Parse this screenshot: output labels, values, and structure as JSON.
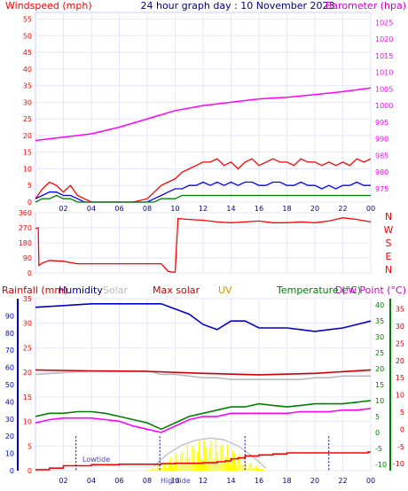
{
  "header": {
    "windspeed_title": "Windspeed (mph)",
    "center_title": "24 hour graph day : 10 November 2023",
    "barometer_title": "Barometer (hpa)"
  },
  "legend": {
    "rainfall": "Rainfall (mm)",
    "humidity": "Humidity",
    "solar": "Solar",
    "max_solar": "Max solar",
    "uv": "UV",
    "temperature": "Temperature (°C)",
    "dew_point": "Dew Point (°C)"
  },
  "annotations": {
    "lowtide": "Lowtide",
    "hightide": "Hightide"
  },
  "colors": {
    "windspeed": "#ff0000",
    "wind_avg": "#0000ff",
    "wind_low": "#008000",
    "barometer": "#ff00ff",
    "direction": "#ff0000",
    "rainfall": "#ff0000",
    "humidity": "#0000cc",
    "solar": "#bbbbbb",
    "max_solar": "#cc0000",
    "uv": "#cc9900",
    "temperature": "#008000",
    "dew_point": "#ff00ff",
    "solar_fill": "#ffff00"
  },
  "chart_data": [
    {
      "type": "line",
      "name": "wind-barometer",
      "x_ticks": [
        "02",
        "04",
        "06",
        "08",
        "10",
        "12",
        "14",
        "16",
        "18",
        "20",
        "22",
        "00"
      ],
      "left_axis": {
        "ticks": [
          0,
          5,
          10,
          15,
          20,
          25,
          30,
          35,
          40,
          45,
          50,
          55
        ],
        "range": [
          0,
          57
        ]
      },
      "right_axis": {
        "ticks": [
          975,
          980,
          985,
          990,
          995,
          1000,
          1005,
          1010,
          1015,
          1020,
          1025
        ],
        "range": [
          971,
          1028
        ]
      },
      "series": [
        {
          "name": "Windspeed (mph)",
          "axis": "left",
          "role": "gust",
          "x": [
            0,
            0.5,
            1,
            1.5,
            2,
            2.5,
            3,
            3.5,
            4,
            5,
            6,
            7,
            8,
            8.5,
            9,
            9.5,
            10,
            10.5,
            11,
            11.5,
            12,
            12.5,
            13,
            13.5,
            14,
            14.5,
            15,
            15.5,
            16,
            16.5,
            17,
            17.5,
            18,
            18.5,
            19,
            19.5,
            20,
            20.5,
            21,
            21.5,
            22,
            22.5,
            23,
            23.5,
            24
          ],
          "y": [
            1,
            4,
            6,
            5,
            3,
            5,
            2,
            1,
            0,
            0,
            0,
            0,
            1,
            3,
            5,
            6,
            7,
            9,
            10,
            11,
            12,
            12,
            13,
            11,
            12,
            10,
            12,
            13,
            11,
            12,
            13,
            12,
            12,
            11,
            13,
            12,
            12,
            11,
            12,
            11,
            12,
            11,
            13,
            12,
            13
          ]
        },
        {
          "name": "Wind avg",
          "axis": "left",
          "role": "average",
          "x": [
            0,
            0.5,
            1,
            1.5,
            2,
            2.5,
            3,
            3.5,
            4,
            5,
            6,
            7,
            8,
            8.5,
            9,
            9.5,
            10,
            10.5,
            11,
            11.5,
            12,
            12.5,
            13,
            13.5,
            14,
            14.5,
            15,
            15.5,
            16,
            16.5,
            17,
            17.5,
            18,
            18.5,
            19,
            19.5,
            20,
            20.5,
            21,
            21.5,
            22,
            22.5,
            23,
            23.5,
            24
          ],
          "y": [
            1,
            2,
            3,
            3,
            2,
            2,
            1,
            0,
            0,
            0,
            0,
            0,
            0,
            1,
            2,
            3,
            4,
            4,
            5,
            5,
            6,
            5,
            6,
            5,
            6,
            5,
            6,
            6,
            5,
            5,
            6,
            6,
            5,
            5,
            6,
            5,
            5,
            4,
            5,
            4,
            5,
            5,
            6,
            5,
            5
          ]
        },
        {
          "name": "Wind low",
          "axis": "left",
          "role": "low",
          "x": [
            0,
            0.5,
            1,
            1.5,
            2,
            2.5,
            3,
            3.5,
            4,
            5,
            6,
            7,
            8,
            8.5,
            9,
            9.5,
            10,
            10.5,
            11,
            11.5,
            12,
            12.5,
            13,
            13.5,
            14,
            14.5,
            15,
            15.5,
            16,
            16.5,
            17,
            17.5,
            18,
            18.5,
            19,
            19.5,
            20,
            20.5,
            21,
            21.5,
            22,
            22.5,
            23,
            23.5,
            24
          ],
          "y": [
            0,
            1,
            1,
            2,
            1,
            1,
            0,
            0,
            0,
            0,
            0,
            0,
            0,
            0,
            1,
            1,
            1,
            2,
            2,
            2,
            2,
            2,
            2,
            2,
            2,
            2,
            2,
            2,
            2,
            2,
            2,
            2,
            2,
            2,
            2,
            2,
            2,
            2,
            2,
            2,
            2,
            2,
            2,
            2,
            2
          ]
        },
        {
          "name": "Barometer (hpa)",
          "axis": "right",
          "role": "pressure",
          "x": [
            0,
            2,
            4,
            6,
            8,
            10,
            12,
            14,
            16,
            18,
            20,
            22,
            24
          ],
          "y": [
            989.5,
            990.5,
            991.5,
            993.5,
            996,
            998.5,
            1000,
            1001,
            1002,
            1002.5,
            1003.3,
            1004.2,
            1005.3
          ]
        }
      ]
    },
    {
      "type": "line",
      "name": "wind-direction",
      "x_ticks": [
        "02",
        "04",
        "06",
        "08",
        "10",
        "12",
        "14",
        "16",
        "18",
        "20",
        "22",
        "00"
      ],
      "left_axis": {
        "ticks": [
          0,
          90,
          180,
          270,
          360
        ],
        "range": [
          0,
          360
        ]
      },
      "compass_labels": [
        "N",
        "W",
        "S",
        "E",
        "N"
      ],
      "series": [
        {
          "name": "Direction",
          "axis": "left",
          "x": [
            0,
            0.2,
            0.25,
            0.5,
            1,
            2,
            3,
            4,
            5,
            6,
            7,
            8,
            9,
            9.5,
            9.8,
            10,
            10.2,
            11,
            12,
            13,
            14,
            15,
            16,
            17,
            18,
            19,
            20,
            21,
            22,
            23,
            24
          ],
          "y": [
            265,
            270,
            45,
            60,
            75,
            70,
            55,
            55,
            55,
            55,
            55,
            55,
            55,
            10,
            5,
            5,
            325,
            320,
            315,
            305,
            300,
            305,
            310,
            300,
            300,
            305,
            300,
            310,
            330,
            320,
            305
          ]
        }
      ]
    },
    {
      "type": "line",
      "name": "temperature-humidity-solar",
      "x_ticks": [
        "02",
        "04",
        "06",
        "08",
        "10",
        "12",
        "14",
        "16",
        "18",
        "20",
        "22",
        "00"
      ],
      "rain_axis": {
        "ticks": [
          0,
          5,
          10,
          15,
          20,
          25,
          30,
          35
        ],
        "range": [
          0,
          35
        ]
      },
      "humidity_axis": {
        "ticks": [
          0,
          10,
          20,
          30,
          40,
          50,
          60,
          70,
          80,
          90
        ],
        "range": [
          0,
          100
        ]
      },
      "temp_axis": {
        "ticks": [
          -10,
          -5,
          0,
          5,
          10,
          15,
          20,
          25,
          30,
          35,
          40
        ],
        "range": [
          -12,
          42
        ]
      },
      "dew_axis": {
        "ticks": [
          -10,
          -5,
          0,
          5,
          10,
          15,
          20,
          25,
          30,
          35
        ],
        "range": [
          -12,
          38
        ]
      },
      "series": [
        {
          "name": "Humidity",
          "axis": "humidity",
          "x": [
            0,
            2,
            4,
            6,
            8,
            9,
            10,
            11,
            12,
            13,
            14,
            15,
            16,
            17,
            18,
            19,
            20,
            21,
            22,
            23,
            24
          ],
          "y": [
            95,
            96,
            97,
            97,
            97,
            97,
            94,
            91,
            85,
            82,
            87,
            87,
            83,
            83,
            83,
            82,
            81,
            82,
            83,
            85,
            87
          ]
        },
        {
          "name": "Solar",
          "axis": "humidity",
          "x": [
            0,
            2,
            4,
            6,
            8,
            9,
            10,
            11,
            12,
            13,
            14,
            15,
            16,
            17,
            18,
            19,
            20,
            21,
            22,
            23,
            24
          ],
          "y": [
            56,
            57,
            58,
            58,
            58,
            56,
            56,
            55,
            54,
            54,
            53,
            53,
            53,
            53,
            53,
            53,
            54,
            54,
            55,
            55,
            55
          ]
        },
        {
          "name": "Max solar",
          "axis": "rain",
          "role": "flat",
          "x": [
            0,
            4,
            8,
            12,
            16,
            20,
            24
          ],
          "y": [
            20.5,
            20.3,
            20.2,
            19.8,
            19.5,
            19.8,
            20.5
          ]
        },
        {
          "name": "Temperature (°C)",
          "axis": "temp",
          "x": [
            0,
            1,
            2,
            3,
            4,
            5,
            6,
            7,
            8,
            9,
            10,
            11,
            12,
            13,
            14,
            15,
            16,
            17,
            18,
            19,
            20,
            21,
            22,
            23,
            24
          ],
          "y": [
            5,
            6,
            6,
            6.5,
            6.5,
            6,
            5,
            4,
            3,
            1,
            3,
            5,
            6,
            7,
            8,
            8,
            9,
            8.5,
            8,
            8.5,
            9,
            9,
            9,
            9.5,
            10
          ]
        },
        {
          "name": "Dew Point (°C)",
          "axis": "temp",
          "x": [
            0,
            1,
            2,
            3,
            4,
            5,
            6,
            7,
            8,
            9,
            10,
            11,
            12,
            13,
            14,
            15,
            16,
            17,
            18,
            19,
            20,
            21,
            22,
            23,
            24
          ],
          "y": [
            3,
            4,
            4.5,
            4.5,
            4.5,
            4,
            3.5,
            2,
            1,
            0,
            2,
            4,
            5,
            5,
            6,
            6,
            6,
            6,
            6,
            6.5,
            6.5,
            6.5,
            7,
            7,
            7.5
          ]
        },
        {
          "name": "Rainfall (mm)",
          "axis": "rain",
          "role": "cumulative",
          "x": [
            0,
            1,
            2,
            4,
            6,
            8,
            9,
            10,
            11,
            12,
            13,
            13.6,
            14,
            14.5,
            15,
            16,
            17,
            18,
            20,
            22,
            23.8,
            24
          ],
          "y": [
            0.2,
            0.5,
            1,
            1.2,
            1.3,
            1.3,
            1.4,
            1.5,
            1.5,
            1.6,
            1.8,
            2,
            2.4,
            2.6,
            3,
            3.2,
            3.4,
            3.6,
            3.6,
            3.6,
            3.8,
            3.8
          ]
        },
        {
          "name": "Solar radiation",
          "axis": "rain",
          "role": "fill",
          "x": [
            8,
            9,
            10,
            11,
            12,
            13,
            14,
            15,
            16,
            16.6
          ],
          "y": [
            0.3,
            1.5,
            3.5,
            5.5,
            6.5,
            6.6,
            5,
            2.5,
            0.8,
            0
          ]
        },
        {
          "name": "Max solar curve",
          "axis": "rain",
          "role": "max-curve",
          "x": [
            8.5,
            9.5,
            10.5,
            11.5,
            12.5,
            13.5,
            14.5,
            15.5,
            16.5
          ],
          "y": [
            1,
            3.5,
            5.2,
            6.2,
            6.6,
            6.3,
            5,
            3,
            0.5
          ]
        }
      ],
      "tide_markers_x": [
        2.9,
        8.9,
        15,
        21
      ]
    }
  ]
}
